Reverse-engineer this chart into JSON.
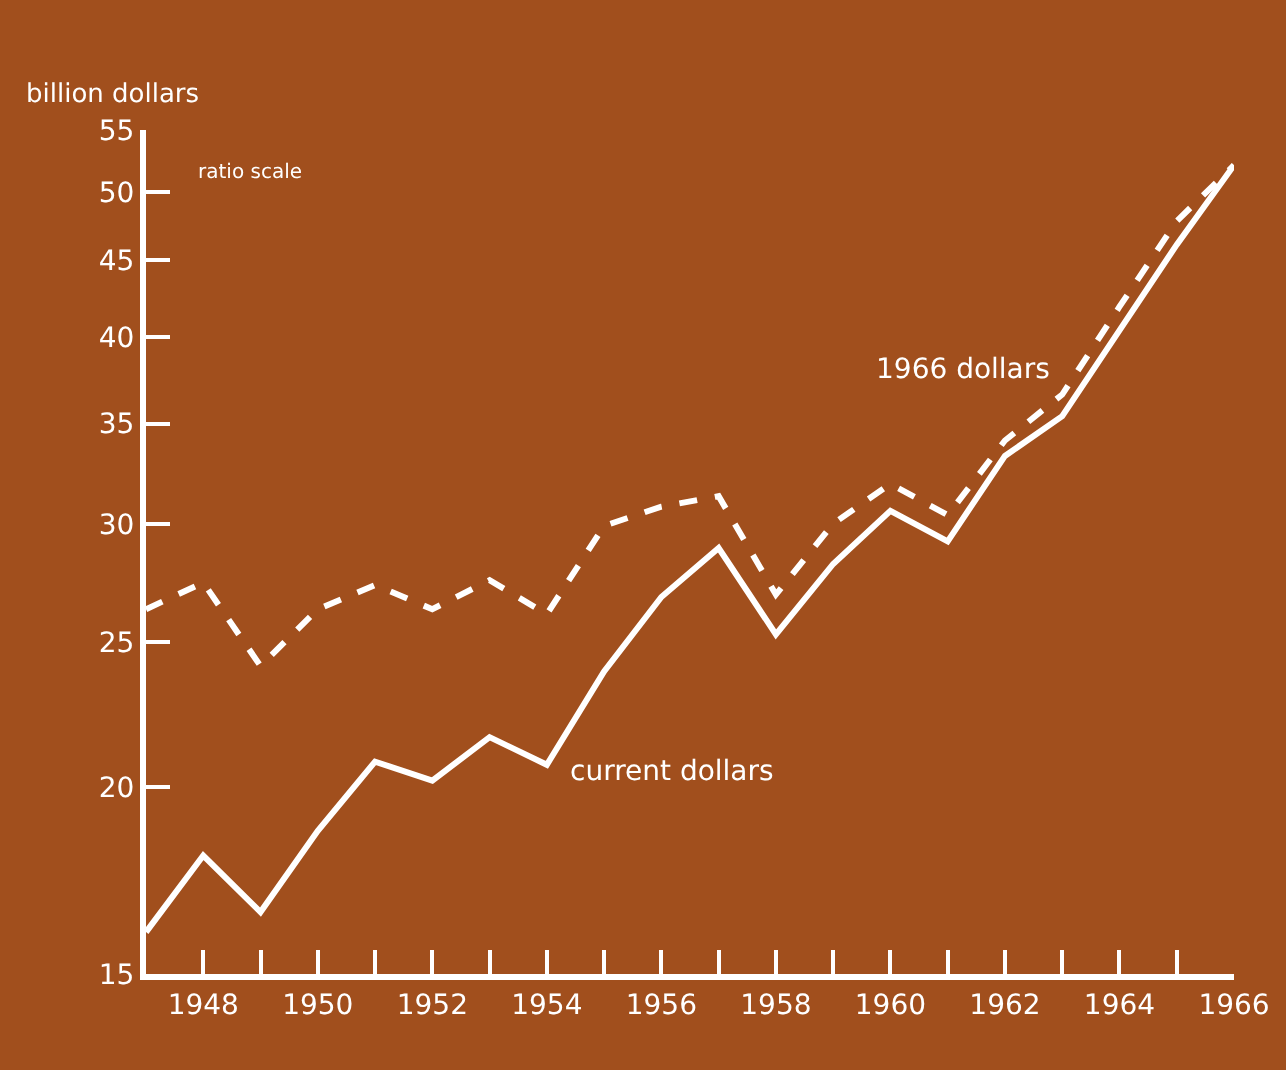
{
  "chart_data": {
    "type": "line",
    "ylabel": "billion dollars",
    "annotations": [
      "ratio scale"
    ],
    "x": [
      1947,
      1948,
      1949,
      1950,
      1951,
      1952,
      1953,
      1954,
      1955,
      1956,
      1957,
      1958,
      1959,
      1960,
      1961,
      1962,
      1963,
      1964,
      1965,
      1966
    ],
    "series": [
      {
        "name": "current dollars",
        "color": "#ffffff",
        "line_style": "solid",
        "values": [
          16.0,
          18.0,
          16.5,
          18.7,
          20.8,
          20.2,
          21.6,
          20.7,
          23.9,
          26.8,
          28.9,
          25.3,
          28.2,
          30.6,
          29.2,
          33.3,
          35.4,
          40.4,
          46.1,
          52.1
        ]
      },
      {
        "name": "1966 dollars",
        "color": "#ffffff",
        "line_style": "dashed",
        "values": [
          26.3,
          27.4,
          24.1,
          26.3,
          27.3,
          26.3,
          27.5,
          26.1,
          29.9,
          30.8,
          31.3,
          26.9,
          30.0,
          31.9,
          30.4,
          34.1,
          36.6,
          41.9,
          47.8,
          52.1
        ]
      }
    ],
    "log": true,
    "grid": false,
    "legend": false,
    "marker": "none",
    "xlim": [
      1947,
      1966
    ],
    "xticks": [
      {
        "value": 1947,
        "label": null
      },
      1948,
      {
        "value": 1949,
        "label": null
      },
      1950,
      {
        "value": 1951,
        "label": null
      },
      1952,
      {
        "value": 1953,
        "label": null
      },
      1954,
      {
        "value": 1955,
        "label": null
      },
      1956,
      {
        "value": 1957,
        "label": null
      },
      1958,
      {
        "value": 1959,
        "label": null
      },
      1960,
      {
        "value": 1961,
        "label": null
      },
      1962,
      {
        "value": 1963,
        "label": null
      },
      1964,
      {
        "value": 1965,
        "label": null
      },
      1966
    ],
    "ylim": [
      15,
      55
    ],
    "yticks": [
      15,
      20,
      25,
      30,
      35,
      40,
      45,
      50,
      55
    ]
  }
}
